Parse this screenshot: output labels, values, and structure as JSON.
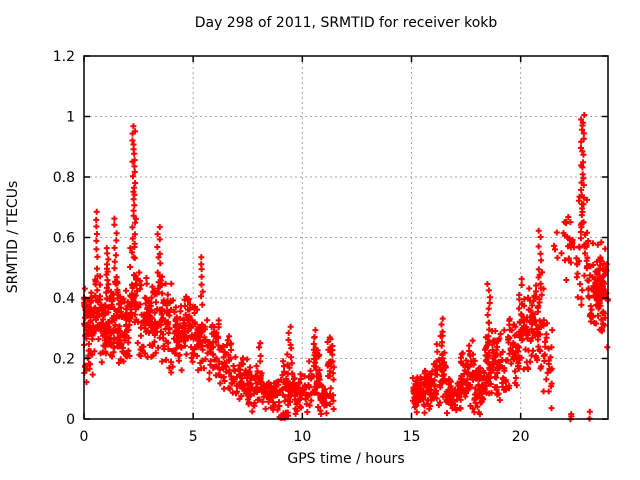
{
  "chart_data": {
    "type": "scatter",
    "title": "Day 298 of 2011, SRMTID for receiver kokb",
    "xlabel": "GPS time / hours",
    "ylabel": "SRMTID / TECUs",
    "xlim": [
      0,
      24
    ],
    "ylim": [
      0,
      1.2
    ],
    "xticks": {
      "values": [
        0,
        5,
        10,
        15,
        20
      ],
      "labels": [
        "0",
        "5",
        "10",
        "15",
        "20"
      ]
    },
    "yticks": {
      "values": [
        0,
        0.2,
        0.4,
        0.6,
        0.8,
        1,
        1.2
      ],
      "labels": [
        "0",
        "0.2",
        "0.4",
        "0.6",
        "0.8",
        "1",
        "1.2"
      ]
    },
    "grid": true,
    "legend": "none",
    "marker": {
      "shape": "plus",
      "size": 7,
      "stroke_width": 2
    },
    "colors": {
      "marker": "#ff0000",
      "grid": "#a8a8a8",
      "frame": "#000000",
      "text": "#000000",
      "background": "#ffffff"
    },
    "data_gap_hours": [
      11.5,
      15.05
    ],
    "notable_points": {
      "morning_spike": {
        "t": 2.3,
        "v_max": 0.97
      },
      "evening_spike": {
        "t": 22.85,
        "v_max": 1.01
      },
      "left_edge_blob": {
        "t": 0.05,
        "v": 0.39
      }
    },
    "seed": 2982011,
    "clusters": [
      [
        0.0,
        0.5,
        0.1,
        0.45,
        70,
        "band"
      ],
      [
        0.0,
        0.08,
        0.36,
        0.4,
        10,
        "column"
      ],
      [
        0.5,
        0.75,
        0.2,
        0.5,
        30,
        "band"
      ],
      [
        0.55,
        0.65,
        0.45,
        0.69,
        10,
        "column"
      ],
      [
        0.75,
        1.25,
        0.15,
        0.45,
        70,
        "band"
      ],
      [
        1.0,
        1.15,
        0.4,
        0.56,
        12,
        "column"
      ],
      [
        1.25,
        1.65,
        0.18,
        0.5,
        50,
        "band"
      ],
      [
        1.38,
        1.5,
        0.45,
        0.66,
        10,
        "column"
      ],
      [
        1.65,
        2.1,
        0.17,
        0.45,
        55,
        "band"
      ],
      [
        2.1,
        2.45,
        0.28,
        0.6,
        40,
        "band"
      ],
      [
        2.2,
        2.38,
        0.55,
        0.97,
        28,
        "column"
      ],
      [
        2.45,
        3.1,
        0.18,
        0.5,
        60,
        "band"
      ],
      [
        3.1,
        3.6,
        0.18,
        0.5,
        50,
        "band"
      ],
      [
        3.35,
        3.5,
        0.45,
        0.63,
        10,
        "column"
      ],
      [
        3.6,
        4.4,
        0.15,
        0.45,
        75,
        "band"
      ],
      [
        4.4,
        5.0,
        0.15,
        0.42,
        55,
        "band"
      ],
      [
        5.0,
        5.6,
        0.13,
        0.4,
        50,
        "band"
      ],
      [
        5.3,
        5.45,
        0.38,
        0.54,
        8,
        "column"
      ],
      [
        5.6,
        6.2,
        0.1,
        0.35,
        45,
        "band"
      ],
      [
        6.2,
        6.8,
        0.08,
        0.3,
        40,
        "band"
      ],
      [
        6.8,
        7.5,
        0.04,
        0.22,
        45,
        "band"
      ],
      [
        7.5,
        8.2,
        0.02,
        0.18,
        50,
        "band"
      ],
      [
        7.9,
        8.1,
        0.12,
        0.25,
        8,
        "column"
      ],
      [
        8.2,
        9.0,
        0.01,
        0.15,
        55,
        "band"
      ],
      [
        8.95,
        9.35,
        0.0,
        0.02,
        14,
        "column"
      ],
      [
        9.0,
        9.6,
        0.02,
        0.2,
        40,
        "band"
      ],
      [
        9.3,
        9.5,
        0.15,
        0.3,
        10,
        "column"
      ],
      [
        9.6,
        10.3,
        0.01,
        0.15,
        45,
        "band"
      ],
      [
        10.3,
        10.8,
        0.03,
        0.25,
        45,
        "band"
      ],
      [
        10.5,
        10.65,
        0.2,
        0.29,
        8,
        "column"
      ],
      [
        10.8,
        11.15,
        0.01,
        0.13,
        30,
        "band"
      ],
      [
        11.15,
        11.45,
        0.02,
        0.3,
        30,
        "band"
      ],
      [
        15.05,
        15.6,
        0.01,
        0.16,
        60,
        "band"
      ],
      [
        15.6,
        16.15,
        0.02,
        0.2,
        55,
        "band"
      ],
      [
        16.15,
        16.6,
        0.03,
        0.3,
        45,
        "band"
      ],
      [
        16.3,
        16.45,
        0.2,
        0.33,
        8,
        "column"
      ],
      [
        16.6,
        17.25,
        0.0,
        0.15,
        60,
        "band"
      ],
      [
        17.25,
        17.85,
        0.03,
        0.27,
        55,
        "band"
      ],
      [
        17.85,
        18.35,
        0.01,
        0.2,
        50,
        "band"
      ],
      [
        18.35,
        18.75,
        0.05,
        0.33,
        45,
        "band"
      ],
      [
        18.45,
        18.6,
        0.3,
        0.45,
        8,
        "column"
      ],
      [
        18.75,
        19.4,
        0.05,
        0.3,
        55,
        "band"
      ],
      [
        19.4,
        20.0,
        0.08,
        0.38,
        55,
        "band"
      ],
      [
        19.9,
        20.05,
        0.3,
        0.46,
        8,
        "column"
      ],
      [
        20.0,
        20.6,
        0.12,
        0.45,
        55,
        "band"
      ],
      [
        20.6,
        21.05,
        0.15,
        0.5,
        40,
        "band"
      ],
      [
        20.8,
        20.95,
        0.45,
        0.62,
        8,
        "column"
      ],
      [
        21.05,
        21.45,
        0.03,
        0.35,
        25,
        "band"
      ],
      [
        21.5,
        22.0,
        0.5,
        0.63,
        6,
        "band"
      ],
      [
        22.0,
        22.45,
        0.45,
        0.75,
        22,
        "band"
      ],
      [
        22.55,
        23.1,
        0.35,
        0.8,
        35,
        "band"
      ],
      [
        22.75,
        22.92,
        0.6,
        1.01,
        30,
        "column"
      ],
      [
        23.1,
        23.55,
        0.25,
        0.6,
        45,
        "band"
      ],
      [
        23.45,
        23.85,
        0.38,
        0.5,
        35,
        "band"
      ],
      [
        23.55,
        24.0,
        0.22,
        0.62,
        55,
        "band"
      ],
      [
        22.28,
        22.32,
        0.0,
        0.02,
        3,
        "column"
      ],
      [
        23.15,
        23.25,
        0.0,
        0.02,
        2,
        "column"
      ]
    ]
  }
}
